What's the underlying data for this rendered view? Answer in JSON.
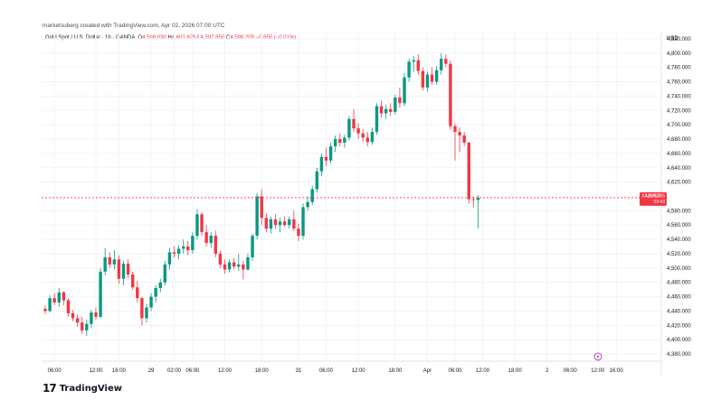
{
  "credit": "marketsuberg created with TradingView.com, Apr 02, 2026 07:00 UTC",
  "legend": {
    "instrument": "Gold Spot / U.S. Dollar · 1h · OANDA",
    "open_label": "O",
    "open": "4,598.030",
    "high_label": "H",
    "high": "4,601.625",
    "low_label": "L",
    "low": "4,597.850",
    "close_label": "C",
    "close": "4,598.205",
    "change": "−0.650 (−0.01%)"
  },
  "currency": "USD",
  "price_tag": {
    "symbol": "XAUUSD",
    "value": "4,598.205",
    "countdown": "59:43"
  },
  "colors": {
    "up": "#089981",
    "down": "#f23645",
    "text": "#131722",
    "grid": "#f0f3fa",
    "axis": "#e0e3eb"
  },
  "brand": "TradingView",
  "brand_icon": "tradingview-logo-icon",
  "event_icon": "lightning-icon",
  "chart_data": {
    "type": "candlestick",
    "y_axis": {
      "ylim": [
        4370,
        4830
      ],
      "ticks": [
        4380,
        4400,
        4420,
        4440,
        4460,
        4480,
        4500,
        4520,
        4540,
        4560,
        4580,
        4620,
        4640,
        4660,
        4680,
        4700,
        4720,
        4740,
        4760,
        4780,
        4800,
        4820
      ],
      "tick_labels": [
        "4,380.000",
        "4,400.000",
        "4,420.000",
        "4,440.000",
        "4,460.000",
        "4,480.000",
        "4,500.000",
        "4,520.000",
        "4,540.000",
        "4,560.000",
        "4,580.000",
        "4,620.000",
        "4,640.000",
        "4,660.000",
        "4,680.000",
        "4,700.000",
        "4,720.000",
        "4,740.000",
        "4,760.000",
        "4,780.000",
        "4,800.000",
        "4,820.000"
      ]
    },
    "x_ticks": [
      {
        "label": "06:00",
        "bar": 2
      },
      {
        "label": "12:00",
        "bar": 11
      },
      {
        "label": "16:00",
        "bar": 16
      },
      {
        "label": "29",
        "bar": 23
      },
      {
        "label": "02:00",
        "bar": 28
      },
      {
        "label": "06:00",
        "bar": 32
      },
      {
        "label": "12:00",
        "bar": 39
      },
      {
        "label": "18:00",
        "bar": 47
      },
      {
        "label": "31",
        "bar": 55
      },
      {
        "label": "06:00",
        "bar": 61
      },
      {
        "label": "12:00",
        "bar": 68
      },
      {
        "label": "18:00",
        "bar": 76
      },
      {
        "label": "Apr",
        "bar": 83
      },
      {
        "label": "06:00",
        "bar": 89
      },
      {
        "label": "12:00",
        "bar": 95
      },
      {
        "label": "18:00",
        "bar": 102
      },
      {
        "label": "2",
        "bar": 109
      },
      {
        "label": "06:00",
        "bar": 114
      },
      {
        "label": "12:00",
        "bar": 120
      },
      {
        "label": "16:00",
        "bar": 124
      }
    ],
    "last_price": 4598.205,
    "candles": [
      [
        4443,
        4448,
        4436,
        4440
      ],
      [
        4440,
        4462,
        4438,
        4458
      ],
      [
        4458,
        4465,
        4448,
        4452
      ],
      [
        4452,
        4472,
        4446,
        4466
      ],
      [
        4466,
        4468,
        4448,
        4455
      ],
      [
        4455,
        4458,
        4432,
        4437
      ],
      [
        4437,
        4441,
        4426,
        4430
      ],
      [
        4430,
        4435,
        4418,
        4424
      ],
      [
        4424,
        4432,
        4408,
        4413
      ],
      [
        4413,
        4428,
        4405,
        4422
      ],
      [
        4422,
        4442,
        4416,
        4438
      ],
      [
        4438,
        4445,
        4428,
        4432
      ],
      [
        4432,
        4500,
        4430,
        4495
      ],
      [
        4495,
        4528,
        4490,
        4515
      ],
      [
        4515,
        4522,
        4500,
        4505
      ],
      [
        4505,
        4525,
        4498,
        4512
      ],
      [
        4512,
        4518,
        4478,
        4485
      ],
      [
        4485,
        4510,
        4476,
        4506
      ],
      [
        4506,
        4512,
        4486,
        4491
      ],
      [
        4491,
        4495,
        4470,
        4473
      ],
      [
        4473,
        4482,
        4452,
        4458
      ],
      [
        4458,
        4460,
        4420,
        4430
      ],
      [
        4430,
        4450,
        4424,
        4445
      ],
      [
        4445,
        4465,
        4440,
        4460
      ],
      [
        4460,
        4476,
        4452,
        4472
      ],
      [
        4472,
        4485,
        4466,
        4480
      ],
      [
        4480,
        4510,
        4476,
        4505
      ],
      [
        4505,
        4528,
        4498,
        4522
      ],
      [
        4522,
        4530,
        4515,
        4520
      ],
      [
        4520,
        4532,
        4512,
        4527
      ],
      [
        4527,
        4540,
        4520,
        4530
      ],
      [
        4530,
        4538,
        4518,
        4525
      ],
      [
        4525,
        4550,
        4520,
        4545
      ],
      [
        4545,
        4582,
        4540,
        4575
      ],
      [
        4575,
        4578,
        4545,
        4550
      ],
      [
        4550,
        4560,
        4530,
        4535
      ],
      [
        4535,
        4550,
        4528,
        4545
      ],
      [
        4545,
        4552,
        4515,
        4520
      ],
      [
        4520,
        4524,
        4500,
        4505
      ],
      [
        4505,
        4512,
        4492,
        4498
      ],
      [
        4498,
        4512,
        4494,
        4508
      ],
      [
        4508,
        4514,
        4498,
        4502
      ],
      [
        4502,
        4520,
        4496,
        4505
      ],
      [
        4505,
        4510,
        4484,
        4498
      ],
      [
        4498,
        4520,
        4496,
        4515
      ],
      [
        4515,
        4548,
        4510,
        4545
      ],
      [
        4545,
        4605,
        4540,
        4600
      ],
      [
        4600,
        4610,
        4560,
        4570
      ],
      [
        4570,
        4576,
        4550,
        4555
      ],
      [
        4555,
        4572,
        4548,
        4568
      ],
      [
        4568,
        4575,
        4555,
        4560
      ],
      [
        4560,
        4570,
        4550,
        4565
      ],
      [
        4565,
        4572,
        4558,
        4560
      ],
      [
        4560,
        4572,
        4555,
        4568
      ],
      [
        4568,
        4580,
        4552,
        4555
      ],
      [
        4555,
        4562,
        4538,
        4545
      ],
      [
        4545,
        4590,
        4540,
        4585
      ],
      [
        4585,
        4600,
        4580,
        4592
      ],
      [
        4592,
        4615,
        4588,
        4610
      ],
      [
        4610,
        4640,
        4605,
        4635
      ],
      [
        4635,
        4660,
        4628,
        4655
      ],
      [
        4655,
        4668,
        4642,
        4650
      ],
      [
        4650,
        4675,
        4646,
        4670
      ],
      [
        4670,
        4685,
        4662,
        4680
      ],
      [
        4680,
        4688,
        4670,
        4675
      ],
      [
        4675,
        4686,
        4668,
        4682
      ],
      [
        4682,
        4712,
        4678,
        4708
      ],
      [
        4708,
        4722,
        4690,
        4695
      ],
      [
        4695,
        4702,
        4680,
        4688
      ],
      [
        4688,
        4694,
        4676,
        4682
      ],
      [
        4682,
        4690,
        4670,
        4676
      ],
      [
        4676,
        4696,
        4672,
        4690
      ],
      [
        4690,
        4730,
        4686,
        4726
      ],
      [
        4726,
        4734,
        4710,
        4716
      ],
      [
        4716,
        4728,
        4708,
        4722
      ],
      [
        4722,
        4730,
        4712,
        4718
      ],
      [
        4718,
        4742,
        4714,
        4738
      ],
      [
        4738,
        4752,
        4724,
        4730
      ],
      [
        4730,
        4772,
        4726,
        4766
      ],
      [
        4766,
        4792,
        4760,
        4788
      ],
      [
        4788,
        4796,
        4774,
        4790
      ],
      [
        4790,
        4798,
        4770,
        4775
      ],
      [
        4775,
        4780,
        4748,
        4752
      ],
      [
        4752,
        4774,
        4746,
        4770
      ],
      [
        4770,
        4780,
        4756,
        4760
      ],
      [
        4760,
        4782,
        4756,
        4776
      ],
      [
        4776,
        4800,
        4770,
        4792
      ],
      [
        4792,
        4798,
        4780,
        4785
      ],
      [
        4785,
        4790,
        4693,
        4698
      ],
      [
        4698,
        4702,
        4650,
        4690
      ],
      [
        4690,
        4696,
        4662,
        4685
      ],
      [
        4685,
        4690,
        4670,
        4675
      ],
      [
        4675,
        4676,
        4590,
        4596
      ],
      [
        4596,
        4600,
        4585,
        4595
      ],
      [
        4595,
        4602,
        4555,
        4598
      ]
    ]
  }
}
